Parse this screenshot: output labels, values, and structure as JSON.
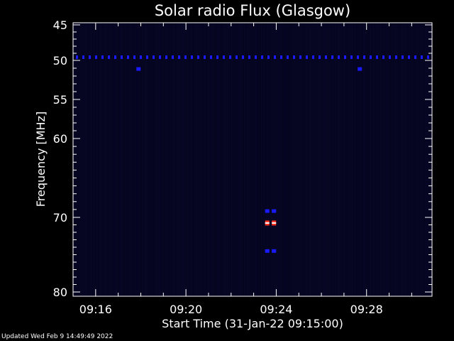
{
  "chart_data": {
    "type": "heatmap",
    "title": "Solar radio Flux (Glasgow)",
    "xlabel": "Start Time (31-Jan-22 09:15:00)",
    "ylabel": "Frequency [MHz]",
    "x_range_minutes": [
      0,
      15.9
    ],
    "ylim": [
      45,
      80
    ],
    "y_ticks": [
      45,
      50,
      55,
      60,
      70,
      80
    ],
    "y_tick_labels": [
      "45",
      "50",
      "55",
      "60",
      "70",
      "80"
    ],
    "x_ticks": [
      {
        "minute": 1,
        "label": "09:16"
      },
      {
        "minute": 5,
        "label": "09:20"
      },
      {
        "minute": 9,
        "label": "09:24"
      },
      {
        "minute": 13,
        "label": "09:28"
      }
    ],
    "background_color": "#050520",
    "colors": {
      "low": "#050520",
      "medium": "#1a1aff",
      "high": "#ff3020",
      "peak": "#ffffff"
    },
    "features": [
      {
        "kind": "interference_line",
        "freq_mhz": 49.5,
        "minute_start": 0,
        "minute_end": 15.9,
        "intensity": "medium"
      },
      {
        "kind": "spot",
        "freq_mhz": 51.1,
        "minute": 2.9,
        "intensity": "medium"
      },
      {
        "kind": "spot",
        "freq_mhz": 51.1,
        "minute": 12.7,
        "intensity": "medium"
      },
      {
        "kind": "spot",
        "freq_mhz": 69.2,
        "minute": 8.6,
        "intensity": "medium"
      },
      {
        "kind": "spot",
        "freq_mhz": 69.2,
        "minute": 8.9,
        "intensity": "medium"
      },
      {
        "kind": "spot",
        "freq_mhz": 70.7,
        "minute": 8.6,
        "intensity": "high"
      },
      {
        "kind": "spot",
        "freq_mhz": 70.7,
        "minute": 8.9,
        "intensity": "high"
      },
      {
        "kind": "spot",
        "freq_mhz": 74.5,
        "minute": 8.6,
        "intensity": "medium"
      },
      {
        "kind": "spot",
        "freq_mhz": 74.5,
        "minute": 8.9,
        "intensity": "medium"
      }
    ]
  },
  "footer": {
    "updated": "Updated Wed Feb  9 14:49:49 2022"
  }
}
